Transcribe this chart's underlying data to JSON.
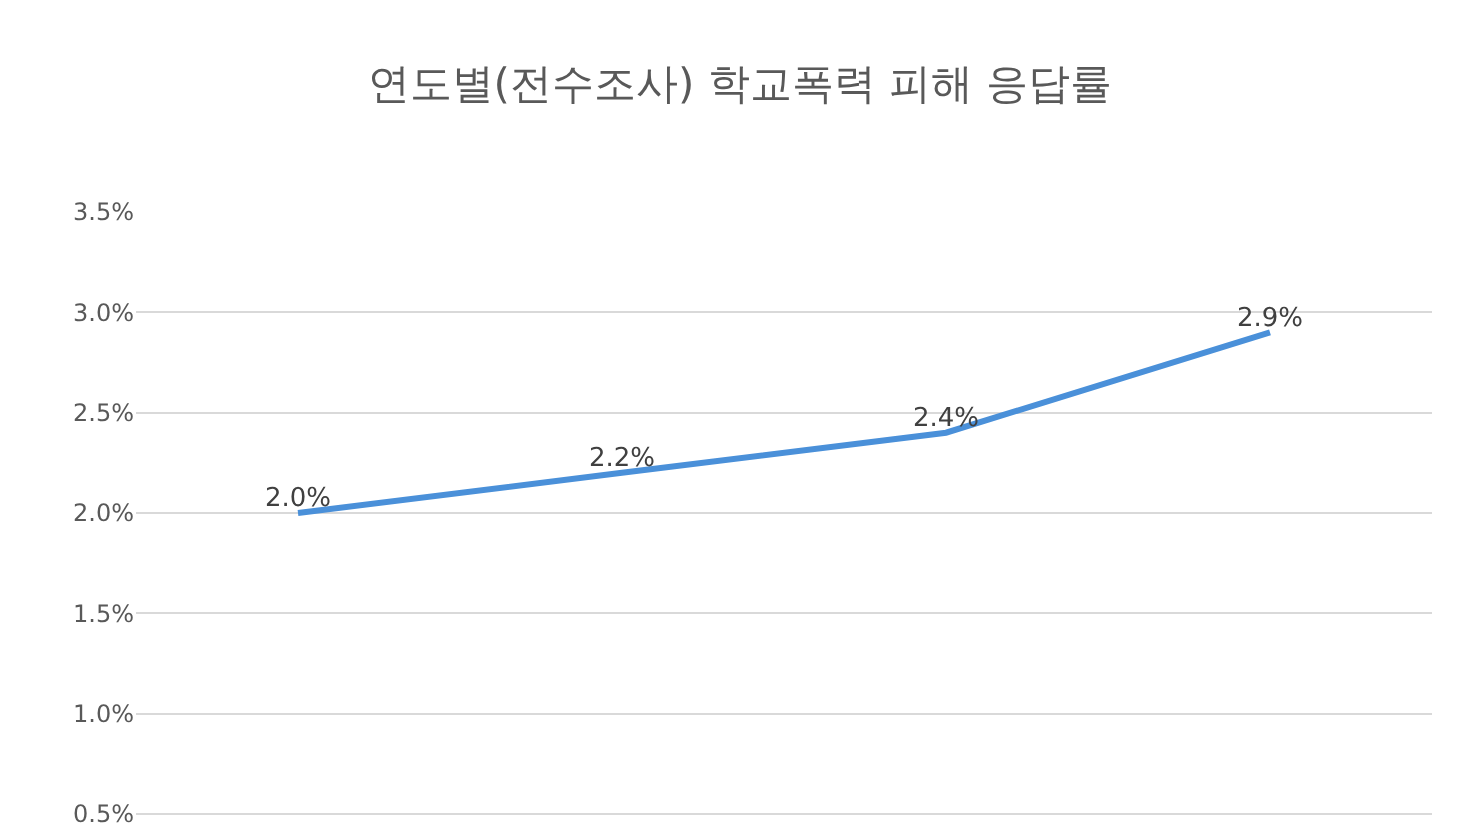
{
  "chart_data": {
    "type": "line",
    "title": "연도별(전수조사) 학교폭력 피해 응답률",
    "categories": [
      null,
      null,
      null,
      null
    ],
    "series": [
      {
        "color": "#4a90d9",
        "values": [
          2.0,
          2.2,
          2.4,
          2.9
        ],
        "value_labels": [
          "2.0%",
          "2.2%",
          "2.4%",
          "2.9%"
        ]
      }
    ],
    "ylim": [
      0.4,
      3.5
    ],
    "yticks": [
      {
        "value": 0.5,
        "label": "0.5%"
      },
      {
        "value": 1.0,
        "label": "1.0%"
      },
      {
        "value": 1.5,
        "label": "1.5%"
      },
      {
        "value": 2.0,
        "label": "2.0%"
      },
      {
        "value": 2.5,
        "label": "2.5%"
      },
      {
        "value": 3.0,
        "label": "3.0%"
      },
      {
        "value": 3.5,
        "label": "3.5%"
      }
    ],
    "grid": "y",
    "legend": false,
    "marker": "none",
    "line_style": "solid",
    "tick_labels": "y"
  }
}
